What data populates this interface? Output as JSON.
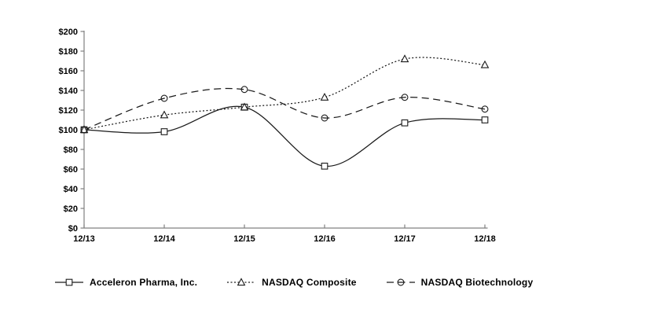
{
  "chart_data": {
    "type": "line",
    "title": "",
    "xlabel": "",
    "ylabel": "",
    "categories": [
      "12/13",
      "12/14",
      "12/15",
      "12/16",
      "12/17",
      "12/18"
    ],
    "series": [
      {
        "name": "Acceleron Pharma, Inc.",
        "line_style": "solid",
        "marker": "square",
        "values": [
          100,
          98,
          123,
          63,
          107,
          110
        ]
      },
      {
        "name": "NASDAQ Composite",
        "line_style": "dotted",
        "marker": "triangle",
        "values": [
          100,
          115,
          123,
          133,
          172,
          166
        ]
      },
      {
        "name": "NASDAQ Biotechnology",
        "line_style": "dashed",
        "marker": "circle",
        "values": [
          100,
          132,
          141,
          112,
          133,
          121
        ]
      }
    ],
    "y_axis": {
      "min": 0,
      "max": 200,
      "step": 20,
      "tick_labels": [
        "$0",
        "$20",
        "$40",
        "$60",
        "$80",
        "$100",
        "$120",
        "$140",
        "$160",
        "$180",
        "$200"
      ]
    },
    "x_axis": {
      "tick_labels": [
        "12/13",
        "12/14",
        "12/15",
        "12/16",
        "12/17",
        "12/18"
      ]
    },
    "legend_position": "bottom",
    "grid": "off",
    "colors": {
      "series_line": "#1a1a1a",
      "axis_line": "#808080",
      "label_text": "#000000",
      "background": "#ffffff",
      "marker_fill": "#ffffff"
    }
  }
}
